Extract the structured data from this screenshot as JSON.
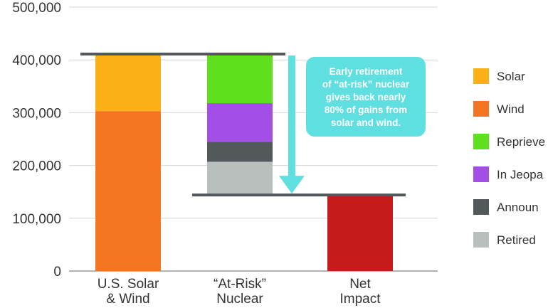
{
  "chart_data": {
    "type": "bar",
    "categories": [
      [
        "U.S. Solar",
        "& Wind"
      ],
      [
        "“At-Risk”",
        "Nuclear"
      ],
      [
        "Net",
        "Impact"
      ]
    ],
    "y_ticks": [
      "0",
      "100,000",
      "200,000",
      "300,000",
      "400,000",
      "500,000"
    ],
    "ylim": [
      0,
      500000
    ],
    "grid": true,
    "legend_position": "right",
    "series": [
      {
        "name": "Solar",
        "color": "#fbb116"
      },
      {
        "name": "Wind",
        "color": "#f47521"
      },
      {
        "name": "Reprieved",
        "color": "#5ee01e"
      },
      {
        "name": "In Jeopardy",
        "color": "#a44ee8"
      },
      {
        "name": "Announced",
        "color": "#53585b"
      },
      {
        "name": "Retired",
        "color": "#b8bfbd"
      }
    ],
    "legend_visible_text": [
      "Solar",
      "Wind",
      "Reprieve",
      "In Jeopa",
      "Announ",
      "Retired"
    ],
    "stacks": [
      {
        "category": 0,
        "segments": [
          {
            "series": "Wind",
            "from": 0,
            "to": 303000
          },
          {
            "series": "Solar",
            "from": 303000,
            "to": 411000
          }
        ]
      },
      {
        "category": 1,
        "segments": [
          {
            "series": "Retired",
            "from": 144000,
            "to": 207000
          },
          {
            "series": "Announced",
            "from": 207000,
            "to": 245000
          },
          {
            "series": "In Jeopardy",
            "from": 245000,
            "to": 318000
          },
          {
            "series": "Reprieved",
            "from": 318000,
            "to": 411000
          }
        ]
      },
      {
        "category": 2,
        "segments": [
          {
            "series": "Net Impact",
            "from": 0,
            "to": 144000,
            "color": "#c51b1b"
          }
        ]
      }
    ],
    "reference_lines": [
      {
        "value": 411000,
        "from_category": 0,
        "to_category": 1
      },
      {
        "value": 144000,
        "from_category": 1,
        "to_category": 2
      }
    ],
    "arrow": {
      "from": 411000,
      "to": 144000,
      "color": "#5fdfe0"
    },
    "callout": {
      "lines": [
        "Early retirement",
        "of “at-risk” nuclear",
        "gives back nearly",
        "80% of gains from",
        "solar and wind."
      ],
      "color": "#5fdfe0"
    }
  }
}
